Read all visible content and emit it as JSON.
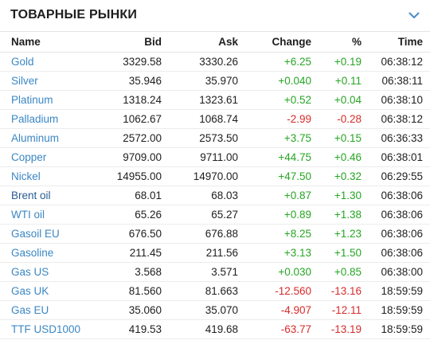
{
  "header": {
    "title": "ТОВАРНЫЕ РЫНКИ"
  },
  "columns": {
    "name": "Name",
    "bid": "Bid",
    "ask": "Ask",
    "change": "Change",
    "pct": "%",
    "time": "Time"
  },
  "colors": {
    "positive": "#27a524",
    "negative": "#d92b2b",
    "link": "#3b87c4",
    "link_strong": "#2a5d93",
    "chevron": "#4a8cc9"
  },
  "rows": [
    {
      "name": "Gold",
      "bid": "3329.58",
      "ask": "3330.26",
      "change": "+6.25",
      "pct": "+0.19",
      "time": "06:38:12",
      "dir": "pos"
    },
    {
      "name": "Silver",
      "bid": "35.946",
      "ask": "35.970",
      "change": "+0.040",
      "pct": "+0.11",
      "time": "06:38:11",
      "dir": "pos"
    },
    {
      "name": "Platinum",
      "bid": "1318.24",
      "ask": "1323.61",
      "change": "+0.52",
      "pct": "+0.04",
      "time": "06:38:10",
      "dir": "pos"
    },
    {
      "name": "Palladium",
      "bid": "1062.67",
      "ask": "1068.74",
      "change": "-2.99",
      "pct": "-0.28",
      "time": "06:38:12",
      "dir": "neg"
    },
    {
      "name": "Aluminum",
      "bid": "2572.00",
      "ask": "2573.50",
      "change": "+3.75",
      "pct": "+0.15",
      "time": "06:36:33",
      "dir": "pos"
    },
    {
      "name": "Copper",
      "bid": "9709.00",
      "ask": "9711.00",
      "change": "+44.75",
      "pct": "+0.46",
      "time": "06:38:01",
      "dir": "pos"
    },
    {
      "name": "Nickel",
      "bid": "14955.00",
      "ask": "14970.00",
      "change": "+47.50",
      "pct": "+0.32",
      "time": "06:29:55",
      "dir": "pos"
    },
    {
      "name": "Brent oil",
      "bid": "68.01",
      "ask": "68.03",
      "change": "+0.87",
      "pct": "+1.30",
      "time": "06:38:06",
      "dir": "pos",
      "strong": true
    },
    {
      "name": "WTI oil",
      "bid": "65.26",
      "ask": "65.27",
      "change": "+0.89",
      "pct": "+1.38",
      "time": "06:38:06",
      "dir": "pos"
    },
    {
      "name": "Gasoil EU",
      "bid": "676.50",
      "ask": "676.88",
      "change": "+8.25",
      "pct": "+1.23",
      "time": "06:38:06",
      "dir": "pos"
    },
    {
      "name": "Gasoline",
      "bid": "211.45",
      "ask": "211.56",
      "change": "+3.13",
      "pct": "+1.50",
      "time": "06:38:06",
      "dir": "pos"
    },
    {
      "name": "Gas US",
      "bid": "3.568",
      "ask": "3.571",
      "change": "+0.030",
      "pct": "+0.85",
      "time": "06:38:00",
      "dir": "pos"
    },
    {
      "name": "Gas UK",
      "bid": "81.560",
      "ask": "81.663",
      "change": "-12.560",
      "pct": "-13.16",
      "time": "18:59:59",
      "dir": "neg"
    },
    {
      "name": "Gas EU",
      "bid": "35.060",
      "ask": "35.070",
      "change": "-4.907",
      "pct": "-12.11",
      "time": "18:59:59",
      "dir": "neg"
    },
    {
      "name": "TTF USD1000",
      "bid": "419.53",
      "ask": "419.68",
      "change": "-63.77",
      "pct": "-13.19",
      "time": "18:59:59",
      "dir": "neg"
    }
  ],
  "icons": {
    "collapse": "chevron-down-icon"
  }
}
